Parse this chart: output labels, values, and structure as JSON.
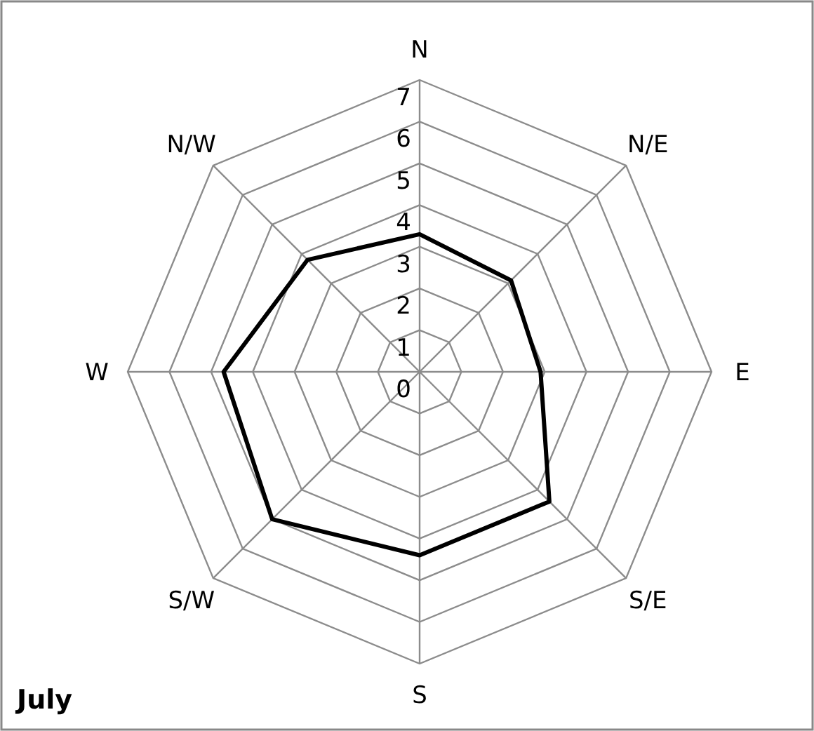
{
  "chart_data": {
    "type": "radar",
    "title": "July",
    "categories": [
      "N",
      "N/E",
      "E",
      "S/E",
      "S",
      "S/W",
      "W",
      "N/W"
    ],
    "series": [
      {
        "color": "#000000",
        "values": [
          3.3,
          3.1,
          2.9,
          4.4,
          4.4,
          5.0,
          4.7,
          3.8
        ]
      }
    ],
    "ylim": [
      0,
      7
    ],
    "yticks": [
      0,
      1,
      2,
      3,
      4,
      5,
      6,
      7
    ],
    "grid": true,
    "marker": "none",
    "line_style": "solid"
  }
}
